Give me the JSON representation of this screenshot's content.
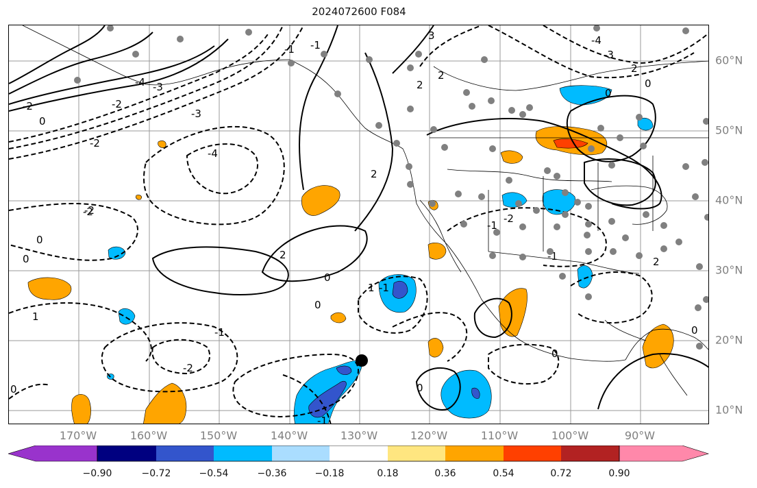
{
  "title": "2024072600 F084",
  "axes": {
    "lon_labels": [
      "170°W",
      "160°W",
      "150°W",
      "140°W",
      "130°W",
      "120°W",
      "110°W",
      "100°W",
      "90°W"
    ],
    "lat_labels": [
      "60°N",
      "50°N",
      "40°N",
      "30°N",
      "20°N",
      "10°N"
    ]
  },
  "contour_labels": [
    "-2",
    "-4",
    "-3",
    "-2",
    "-1",
    "0",
    "-1",
    "-2",
    "-3",
    "-4",
    "0",
    "-2",
    "0",
    "1",
    "2",
    "2",
    "0",
    "-1",
    "-2",
    "0",
    "1",
    "-1",
    "0",
    "-1",
    "0",
    "2",
    "-2",
    "3",
    "2",
    "2",
    "-4",
    "-3",
    "-2",
    "0",
    "2",
    "-1",
    "-1",
    "0",
    "0",
    "0"
  ],
  "colorbar": {
    "tick_labels": [
      "−0.90",
      "−0.72",
      "−0.54",
      "−0.36",
      "−0.18",
      "0.18",
      "0.36",
      "0.54",
      "0.72",
      "0.90"
    ],
    "colors": [
      "#9933cc",
      "#000080",
      "#3355cc",
      "#00bbff",
      "#aaddff",
      "#ffffff",
      "#ffe680",
      "#ffa500",
      "#ff4000",
      "#b22222",
      "#ff88aa"
    ]
  },
  "legend": {
    "storm_marker": "black-dot"
  }
}
